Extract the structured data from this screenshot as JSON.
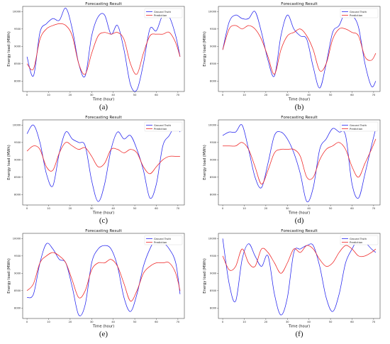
{
  "figure": {
    "captions": [
      "(a)",
      "(b)",
      "(c)",
      "(d)",
      "(e)",
      "(f)"
    ]
  },
  "colors": {
    "ground_truth": "#2222ee",
    "prediction": "#ee2222"
  },
  "chart_data": [
    {
      "type": "line",
      "title": "Forecasting Result",
      "xlabel": "Time (hour)",
      "ylabel": "Energy load (MWh)",
      "xlim": [
        -2,
        73
      ],
      "ylim": [
        7700,
        10150
      ],
      "x_ticks": [
        0,
        10,
        20,
        30,
        40,
        50,
        60,
        70
      ],
      "y_ticks": [
        8000,
        8500,
        9000,
        9500,
        10000
      ],
      "y_tick_labels": [
        "8000",
        "8500",
        "9000",
        "9500",
        "10000"
      ],
      "legend": "top-right",
      "grid": false,
      "x": [
        0,
        3,
        6,
        9,
        12,
        15,
        18,
        21,
        24,
        27,
        30,
        33,
        36,
        39,
        42,
        45,
        48,
        51,
        54,
        57,
        60,
        63,
        66,
        69,
        71
      ],
      "series": [
        {
          "name": "Ground Truth",
          "values": [
            8700,
            8150,
            9400,
            9650,
            9800,
            9750,
            10100,
            9500,
            8500,
            8150,
            9300,
            9850,
            9900,
            9350,
            9600,
            8900,
            7900,
            7750,
            8500,
            9500,
            9450,
            9900,
            9850,
            9300,
            8700
          ]
        },
        {
          "name": "Prediction",
          "values": [
            8500,
            8350,
            9200,
            9500,
            9600,
            9650,
            9600,
            9300,
            8500,
            8200,
            8800,
            9300,
            9400,
            9350,
            9400,
            9200,
            8500,
            8200,
            8800,
            9300,
            9350,
            9350,
            9400,
            9100,
            8700
          ]
        }
      ]
    },
    {
      "type": "line",
      "title": "Forecasting Result",
      "xlabel": "Time (hour)",
      "ylabel": "Energy load (MWh)",
      "xlim": [
        -2,
        73
      ],
      "ylim": [
        7700,
        10150
      ],
      "x_ticks": [
        0,
        10,
        20,
        30,
        40,
        50,
        60,
        70
      ],
      "y_ticks": [
        8000,
        8500,
        9000,
        9500,
        10000
      ],
      "y_tick_labels": [
        "8000",
        "8500",
        "9000",
        "9500",
        "10000"
      ],
      "legend": "top-right",
      "grid": false,
      "x": [
        0,
        3,
        6,
        9,
        12,
        15,
        18,
        21,
        24,
        27,
        30,
        33,
        36,
        39,
        42,
        45,
        48,
        51,
        54,
        57,
        60,
        63,
        66,
        69,
        71
      ],
      "series": [
        {
          "name": "Ground Truth",
          "values": [
            8900,
            9700,
            9900,
            9800,
            9800,
            10000,
            9400,
            8600,
            8150,
            9300,
            9900,
            9500,
            9300,
            9200,
            8400,
            7800,
            8500,
            9400,
            9600,
            10000,
            9900,
            9550,
            8500,
            7850,
            8000
          ]
        },
        {
          "name": "Prediction",
          "values": [
            8900,
            9500,
            9600,
            9500,
            9600,
            9500,
            9200,
            8700,
            8200,
            8900,
            9300,
            9400,
            9500,
            9300,
            8900,
            8300,
            8500,
            9200,
            9500,
            9500,
            9400,
            9300,
            8700,
            8600,
            8800
          ]
        }
      ]
    },
    {
      "type": "line",
      "title": "Forecasting Result",
      "xlabel": "Time (hour)",
      "ylabel": "Energy load (MWh)",
      "xlim": [
        -2,
        73
      ],
      "ylim": [
        7700,
        10150
      ],
      "x_ticks": [
        0,
        10,
        20,
        30,
        40,
        50,
        60,
        70
      ],
      "y_ticks": [
        8000,
        8500,
        9000,
        9500,
        10000
      ],
      "y_tick_labels": [
        "8000",
        "8500",
        "9000",
        "9500",
        "10000"
      ],
      "legend": "top-right",
      "grid": false,
      "x": [
        0,
        3,
        6,
        9,
        12,
        15,
        18,
        21,
        24,
        27,
        30,
        33,
        36,
        39,
        42,
        45,
        48,
        51,
        54,
        57,
        60,
        63,
        66,
        69,
        71
      ],
      "series": [
        {
          "name": "Ground Truth",
          "values": [
            9750,
            10000,
            9500,
            8600,
            8250,
            9200,
            9800,
            9600,
            9500,
            9400,
            8400,
            7800,
            8300,
            9300,
            9800,
            9600,
            9700,
            9300,
            8700,
            7900,
            8300,
            9400,
            9700,
            10000,
            9800
          ]
        },
        {
          "name": "Prediction",
          "values": [
            9250,
            9400,
            9300,
            8800,
            8700,
            9200,
            9500,
            9400,
            9300,
            9350,
            9100,
            8800,
            8900,
            9300,
            9300,
            9200,
            9300,
            9200,
            8800,
            8600,
            8800,
            9000,
            9100,
            9100,
            9100
          ]
        }
      ]
    },
    {
      "type": "line",
      "title": "Forecasting Result",
      "xlabel": "Time (hour)",
      "ylabel": "Energy load (MWh)",
      "xlim": [
        -2,
        73
      ],
      "ylim": [
        7700,
        10150
      ],
      "x_ticks": [
        0,
        10,
        20,
        30,
        40,
        50,
        60,
        70
      ],
      "y_ticks": [
        8000,
        8500,
        9000,
        9500,
        10000
      ],
      "y_tick_labels": [
        "8000",
        "8500",
        "9000",
        "9500",
        "10000"
      ],
      "legend": "top-right",
      "grid": false,
      "x": [
        0,
        3,
        6,
        9,
        12,
        15,
        18,
        21,
        24,
        27,
        30,
        33,
        36,
        39,
        42,
        45,
        48,
        51,
        54,
        57,
        60,
        63,
        66,
        69,
        71
      ],
      "series": [
        {
          "name": "Ground Truth",
          "values": [
            9700,
            9800,
            9800,
            10000,
            9300,
            8500,
            8200,
            8900,
            9700,
            9800,
            9600,
            9200,
            8600,
            7800,
            8200,
            9300,
            9600,
            9900,
            9800,
            9700,
            8300,
            7900,
            8600,
            9400,
            9900
          ]
        },
        {
          "name": "Prediction",
          "values": [
            9400,
            9400,
            9400,
            9500,
            9300,
            8800,
            8300,
            8700,
            9200,
            9300,
            9300,
            9300,
            9100,
            8500,
            8500,
            9000,
            9300,
            9400,
            9500,
            9300,
            8800,
            8500,
            8900,
            9300,
            9600
          ]
        }
      ]
    },
    {
      "type": "line",
      "title": "Forecasting Result",
      "xlabel": "Time (hour)",
      "ylabel": "Energy load (MWh)",
      "xlim": [
        -2,
        73
      ],
      "ylim": [
        7700,
        10150
      ],
      "x_ticks": [
        0,
        10,
        20,
        30,
        40,
        50,
        60,
        70
      ],
      "y_ticks": [
        8000,
        8500,
        9000,
        9500,
        10000
      ],
      "y_tick_labels": [
        "8000",
        "8500",
        "9000",
        "9500",
        "10000"
      ],
      "legend": "top-right",
      "grid": false,
      "x": [
        0,
        3,
        6,
        9,
        12,
        15,
        18,
        21,
        24,
        27,
        30,
        33,
        36,
        39,
        42,
        45,
        48,
        51,
        54,
        57,
        60,
        63,
        66,
        69,
        71
      ],
      "series": [
        {
          "name": "Ground Truth",
          "values": [
            8300,
            8400,
            9300,
            9850,
            9700,
            9400,
            9300,
            8600,
            7800,
            8100,
            9300,
            9700,
            9800,
            9700,
            9200,
            8300,
            7900,
            8400,
            9200,
            9700,
            10000,
            9900,
            9700,
            9300,
            8400
          ]
        },
        {
          "name": "Prediction",
          "values": [
            8500,
            8700,
            9300,
            9500,
            9600,
            9500,
            9300,
            8800,
            8300,
            8500,
            9100,
            9300,
            9300,
            9400,
            9200,
            8700,
            8200,
            8500,
            9000,
            9200,
            9300,
            9300,
            9300,
            9000,
            8500
          ]
        }
      ]
    },
    {
      "type": "line",
      "title": "Forecasting Result",
      "xlabel": "Time (hour)",
      "ylabel": "Energy load (MWh)",
      "xlim": [
        -2,
        73
      ],
      "ylim": [
        7700,
        10150
      ],
      "x_ticks": [
        0,
        10,
        20,
        30,
        40,
        50,
        60,
        70
      ],
      "y_ticks": [
        8000,
        8500,
        9000,
        9500,
        10000
      ],
      "y_tick_labels": [
        "8000",
        "8500",
        "9000",
        "9500",
        "10000"
      ],
      "legend": "top-right",
      "grid": false,
      "x": [
        0,
        3,
        6,
        9,
        12,
        15,
        18,
        21,
        24,
        27,
        30,
        33,
        36,
        39,
        42,
        45,
        48,
        51,
        54,
        57,
        60,
        63,
        66,
        69,
        71
      ],
      "series": [
        {
          "name": "Ground Truth",
          "values": [
            10000,
            8700,
            8200,
            9400,
            9850,
            9500,
            9200,
            9500,
            8400,
            7800,
            8300,
            9600,
            9700,
            9800,
            9800,
            9200,
            8300,
            7900,
            8400,
            9300,
            9700,
            10000,
            9900,
            9700,
            9600
          ]
        },
        {
          "name": "Prediction",
          "values": [
            9500,
            9100,
            9200,
            9700,
            9300,
            9200,
            9700,
            9600,
            9300,
            9000,
            9300,
            9700,
            9600,
            9800,
            9700,
            9400,
            9200,
            9300,
            9600,
            9800,
            9700,
            9500,
            9500,
            9600,
            9700
          ]
        }
      ]
    }
  ]
}
